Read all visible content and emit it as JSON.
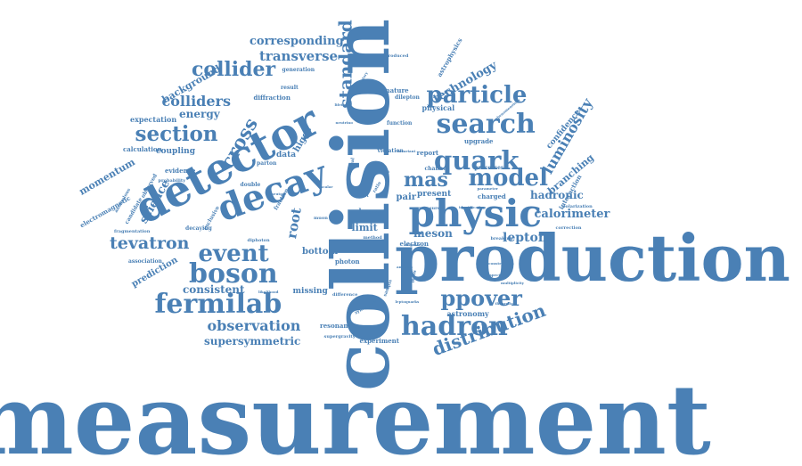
{
  "cloud": {
    "color": "#4a80b5",
    "words": [
      {
        "text": "measurement",
        "weight": 100
      },
      {
        "text": "collision",
        "weight": 80
      },
      {
        "text": "production",
        "weight": 68
      },
      {
        "text": "detector",
        "weight": 44
      },
      {
        "text": "physic",
        "weight": 40
      },
      {
        "text": "decay",
        "weight": 40
      },
      {
        "text": "hadron",
        "weight": 28
      },
      {
        "text": "fermilab",
        "weight": 28
      },
      {
        "text": "boson",
        "weight": 28
      },
      {
        "text": "search",
        "weight": 28
      },
      {
        "text": "quark",
        "weight": 27
      },
      {
        "text": "particle",
        "weight": 25
      },
      {
        "text": "model",
        "weight": 24
      },
      {
        "text": "event",
        "weight": 23
      },
      {
        "text": "section",
        "weight": 21
      },
      {
        "text": "ppover",
        "weight": 22
      },
      {
        "text": "collider",
        "weight": 21
      },
      {
        "text": "standard",
        "weight": 19
      },
      {
        "text": "cross",
        "weight": 20
      },
      {
        "text": "distribution",
        "weight": 20
      },
      {
        "text": "tevatron",
        "weight": 18
      },
      {
        "text": "mas",
        "weight": 20
      },
      {
        "text": "luminosity",
        "weight": 15
      },
      {
        "text": "observation",
        "weight": 15
      },
      {
        "text": "colliders",
        "weight": 14
      },
      {
        "text": "transverse",
        "weight": 14
      },
      {
        "text": "lepton",
        "weight": 13
      },
      {
        "text": "root",
        "weight": 14
      },
      {
        "text": "calorimeter",
        "weight": 12
      },
      {
        "text": "corresponding",
        "weight": 12
      },
      {
        "text": "technology",
        "weight": 11
      },
      {
        "text": "hadronic",
        "weight": 11
      },
      {
        "text": "supersymmetric",
        "weight": 11
      },
      {
        "text": "meson",
        "weight": 11
      },
      {
        "text": "consistent",
        "weight": 11
      },
      {
        "text": "energy",
        "weight": 11
      },
      {
        "text": "science",
        "weight": 11
      },
      {
        "text": "branching",
        "weight": 10
      },
      {
        "text": "momentum",
        "weight": 10
      },
      {
        "text": "limit",
        "weight": 10
      },
      {
        "text": "background",
        "weight": 10
      },
      {
        "text": "bottom",
        "weight": 9
      },
      {
        "text": "prediction",
        "weight": 9
      },
      {
        "text": "pair",
        "weight": 9
      },
      {
        "text": "higgs",
        "weight": 9
      },
      {
        "text": "present",
        "weight": 8
      },
      {
        "text": "missing",
        "weight": 8
      },
      {
        "text": "coupling",
        "weight": 8
      },
      {
        "text": "confidence",
        "weight": 8
      },
      {
        "text": "data",
        "weight": 8
      },
      {
        "text": "expectation",
        "weight": 7
      },
      {
        "text": "astronomy",
        "weight": 7
      },
      {
        "text": "heavy",
        "weight": 7
      },
      {
        "text": "physical",
        "weight": 7
      },
      {
        "text": "diffraction",
        "weight": 6
      },
      {
        "text": "evidence",
        "weight": 6
      },
      {
        "text": "electromagnetic",
        "weight": 6
      },
      {
        "text": "calculation",
        "weight": 6
      },
      {
        "text": "astrophysics",
        "weight": 6
      },
      {
        "text": "electron",
        "weight": 6
      },
      {
        "text": "photon",
        "weight": 6
      },
      {
        "text": "experiment",
        "weight": 6
      },
      {
        "text": "resonance",
        "weight": 6
      },
      {
        "text": "charged",
        "weight": 6
      },
      {
        "text": "interaction",
        "weight": 6
      },
      {
        "text": "report",
        "weight": 6
      },
      {
        "text": "upgrade",
        "weight": 6
      },
      {
        "text": "signature",
        "weight": 6
      },
      {
        "text": "function",
        "weight": 5
      },
      {
        "text": "channel",
        "weight": 5
      },
      {
        "text": "dilepton",
        "weight": 5
      },
      {
        "text": "violation",
        "weight": 5
      },
      {
        "text": "double",
        "weight": 5
      },
      {
        "text": "inclusive",
        "weight": 5
      },
      {
        "text": "observed",
        "weight": 5
      },
      {
        "text": "candidate",
        "weight": 5
      },
      {
        "text": "decaying",
        "weight": 5
      },
      {
        "text": "association",
        "weight": 5
      },
      {
        "text": "parton",
        "weight": 5
      },
      {
        "text": "fraction",
        "weight": 5
      },
      {
        "text": "result",
        "weight": 5
      },
      {
        "text": "generation",
        "weight": 5
      },
      {
        "text": "processes",
        "weight": 5
      },
      {
        "text": "polarization",
        "weight": 4
      },
      {
        "text": "correction",
        "weight": 4
      },
      {
        "text": "supergravity",
        "weight": 4
      },
      {
        "text": "sample",
        "weight": 4
      },
      {
        "text": "mass",
        "weight": 4
      },
      {
        "text": "produced",
        "weight": 4
      },
      {
        "text": "jet",
        "weight": 4
      },
      {
        "text": "probability",
        "weight": 4
      },
      {
        "text": "fragmentation",
        "weight": 4
      },
      {
        "text": "measure",
        "weight": 4
      },
      {
        "text": "method",
        "weight": 4
      },
      {
        "text": "difference",
        "weight": 4
      },
      {
        "text": "leptoquarks",
        "weight": 4
      },
      {
        "text": "diphoton",
        "weight": 4
      },
      {
        "text": "signal",
        "weight": 4
      },
      {
        "text": "symmetry",
        "weight": 4
      },
      {
        "text": "anomalous",
        "weight": 4
      },
      {
        "text": "ratio",
        "weight": 4
      },
      {
        "text": "muon",
        "weight": 4
      },
      {
        "text": "breaking",
        "weight": 4
      },
      {
        "text": "neutral",
        "weight": 3
      },
      {
        "text": "likelihood",
        "weight": 3
      },
      {
        "text": "angular",
        "weight": 3
      },
      {
        "text": "analysis",
        "weight": 3
      },
      {
        "text": "elementary",
        "weight": 3
      },
      {
        "text": "parameter",
        "weight": 3
      },
      {
        "text": "phenomenology",
        "weight": 3
      },
      {
        "text": "gev",
        "weight": 3
      },
      {
        "text": "scalar",
        "weight": 3
      },
      {
        "text": "multiplicity",
        "weight": 3
      },
      {
        "text": "invariant",
        "weight": 3
      },
      {
        "text": "identification",
        "weight": 3
      },
      {
        "text": "spectrum",
        "weight": 3
      },
      {
        "text": "lifetime",
        "weight": 3
      },
      {
        "text": "neutrino",
        "weight": 3
      },
      {
        "text": "theoretical",
        "weight": 3
      },
      {
        "text": "reconstruction",
        "weight": 3
      }
    ]
  }
}
